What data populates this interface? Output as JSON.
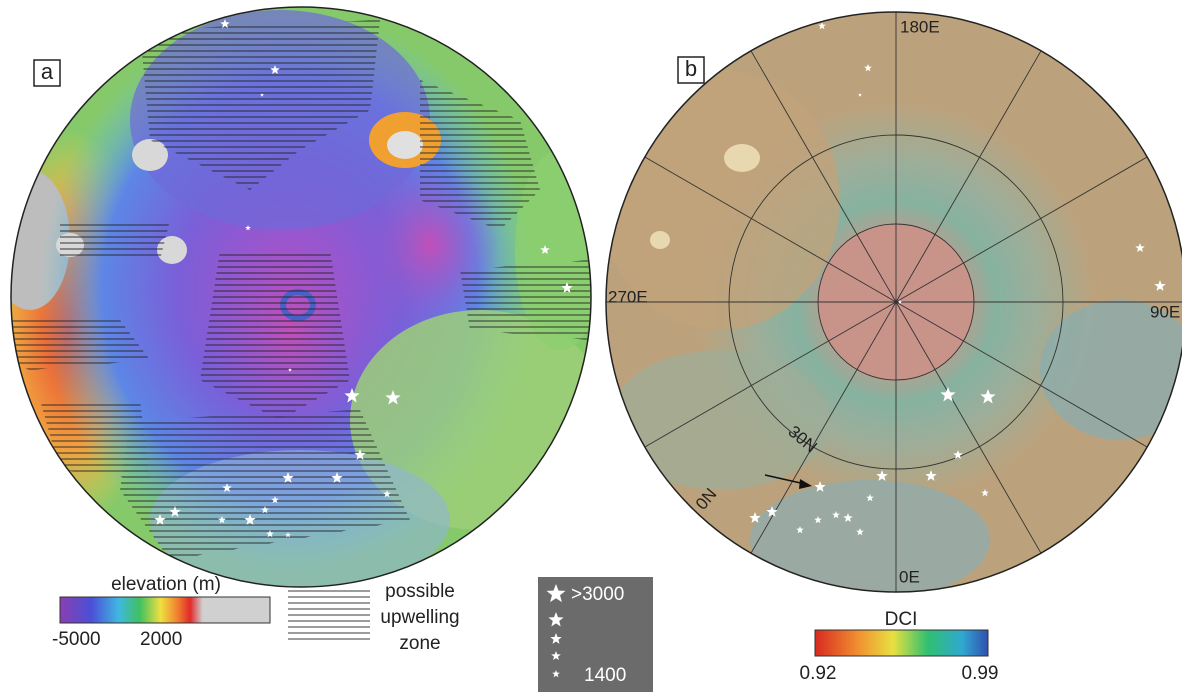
{
  "panel_a": {
    "label": "a"
  },
  "panel_b": {
    "label": "b",
    "longitude_labels": [
      "180E",
      "270E",
      "90E",
      "0E"
    ],
    "latitude_labels": [
      "30N",
      "0N"
    ]
  },
  "elevation_legend": {
    "title": "elevation (m)",
    "min_label": "-5000",
    "max_label": "2000"
  },
  "upwelling_legend": {
    "lines": [
      "possible",
      "upwelling",
      "zone"
    ]
  },
  "star_legend": {
    "max_label": ">3000",
    "min_label": "1400"
  },
  "dci_legend": {
    "title": "DCI",
    "min_label": "0.92",
    "max_label": "0.99"
  }
}
